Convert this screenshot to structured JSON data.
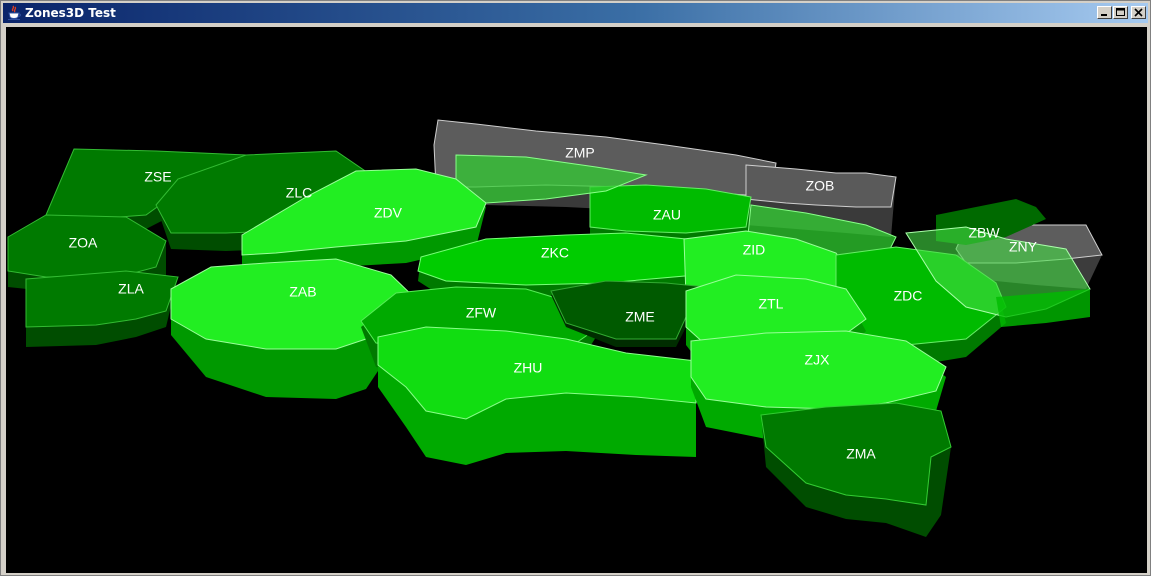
{
  "window": {
    "title": "Zones3D Test",
    "icon": "java-cup-icon",
    "controls": {
      "minimize": "minimize-icon",
      "maximize": "maximize-icon",
      "close": "close-icon"
    }
  },
  "map": {
    "zones": [
      {
        "id": "ZSE",
        "label": "ZSE",
        "color": "#007a00"
      },
      {
        "id": "ZLC",
        "label": "ZLC",
        "color": "#007a00"
      },
      {
        "id": "ZOA",
        "label": "ZOA",
        "color": "#007a00"
      },
      {
        "id": "ZLA",
        "label": "ZLA",
        "color": "#007a00"
      },
      {
        "id": "ZDV",
        "label": "ZDV",
        "color": "#22ee22"
      },
      {
        "id": "ZMP",
        "label": "ZMP",
        "color": "#555555"
      },
      {
        "id": "ZOB",
        "label": "ZOB",
        "color": "#555555"
      },
      {
        "id": "ZAU",
        "label": "ZAU",
        "color": "#00bb00"
      },
      {
        "id": "ZKC",
        "label": "ZKC",
        "color": "#00cc00"
      },
      {
        "id": "ZID",
        "label": "ZID",
        "color": "#22ee22"
      },
      {
        "id": "ZBW",
        "label": "ZBW",
        "color": "#007a00"
      },
      {
        "id": "ZNY",
        "label": "ZNY",
        "color": "#555555"
      },
      {
        "id": "ZAB",
        "label": "ZAB",
        "color": "#22ee22"
      },
      {
        "id": "ZFW",
        "label": "ZFW",
        "color": "#00aa00"
      },
      {
        "id": "ZME",
        "label": "ZME",
        "color": "#005a00"
      },
      {
        "id": "ZTL",
        "label": "ZTL",
        "color": "#22ee22"
      },
      {
        "id": "ZDC",
        "label": "ZDC",
        "color": "#00bb00"
      },
      {
        "id": "ZHU",
        "label": "ZHU",
        "color": "#11dd11"
      },
      {
        "id": "ZJX",
        "label": "ZJX",
        "color": "#22ee22"
      },
      {
        "id": "ZMA",
        "label": "ZMA",
        "color": "#007a00"
      }
    ]
  }
}
